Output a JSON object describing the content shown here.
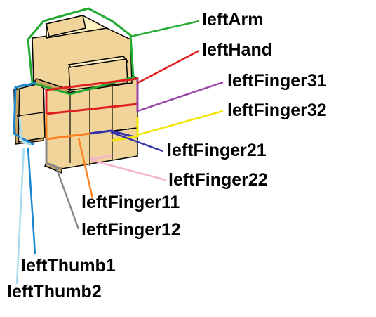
{
  "labels": {
    "left_arm": "leftArm",
    "left_hand": "leftHand",
    "left_finger_31": "leftFinger31",
    "left_finger_32": "leftFinger32",
    "left_finger_21": "leftFinger21",
    "left_finger_22": "leftFinger22",
    "left_finger_11": "leftFinger11",
    "left_finger_12": "leftFinger12",
    "left_thumb_1": "leftThumb1",
    "left_thumb_2": "leftThumb2"
  },
  "colors": {
    "left_arm": "#22aa33",
    "left_hand": "#e02020",
    "left_finger_31": "#9b45a8",
    "left_finger_32": "#f2e600",
    "left_finger_21": "#3333aa",
    "left_finger_22": "#f5b4c8",
    "left_finger_11": "#ff8020",
    "left_finger_12": "#888888",
    "left_thumb_1": "#1a86d0",
    "left_thumb_2": "#a8dcec",
    "block_face": "#f0d49a",
    "block_light": "#fff2c0",
    "block_dark": "#c9a562",
    "block_outline": "#000000"
  }
}
